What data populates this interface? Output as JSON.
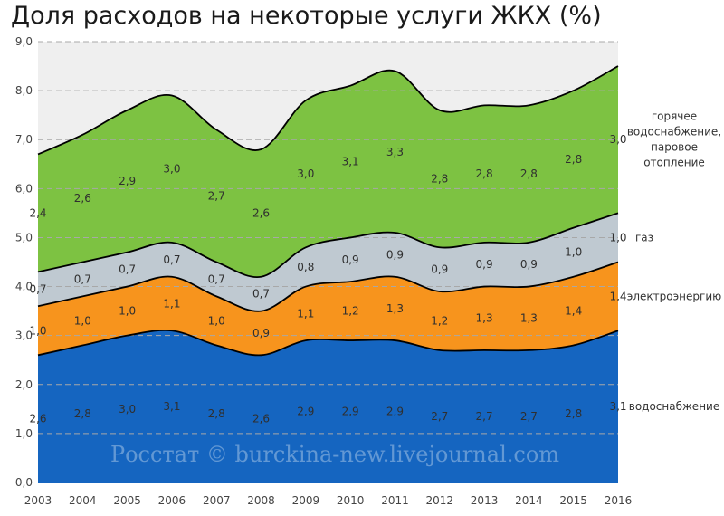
{
  "title": "Доля расходов на некоторые услуги ЖКХ (%)",
  "watermark": "Росстат © burckina-new.livejournal.com",
  "chart_data": {
    "type": "area",
    "stacked": true,
    "title": "Доля расходов на некоторые услуги ЖКХ (%)",
    "x": [
      "2003",
      "2004",
      "2005",
      "2006",
      "2007",
      "2008",
      "2009",
      "2010",
      "2011",
      "2012",
      "2013",
      "2014",
      "2015",
      "2016"
    ],
    "ylim": [
      0,
      9
    ],
    "yticks": [
      "0,0",
      "1,0",
      "2,0",
      "3,0",
      "4,0",
      "5,0",
      "6,0",
      "7,0",
      "8,0",
      "9,0"
    ],
    "grid": true,
    "series": [
      {
        "name": "водоснабжение",
        "color": "#1565c0",
        "values": [
          2.6,
          2.8,
          3.0,
          3.1,
          2.8,
          2.6,
          2.9,
          2.9,
          2.9,
          2.7,
          2.7,
          2.7,
          2.8,
          3.1
        ],
        "labels": [
          "2,6",
          "2,8",
          "3,0",
          "3,1",
          "2,8",
          "2,6",
          "2,9",
          "2,9",
          "2,9",
          "2,7",
          "2,7",
          "2,7",
          "2,8",
          "3,1"
        ]
      },
      {
        "name": "электроэнергию",
        "color": "#f7941d",
        "values": [
          1.0,
          1.0,
          1.0,
          1.1,
          1.0,
          0.9,
          1.1,
          1.2,
          1.3,
          1.2,
          1.3,
          1.3,
          1.4,
          1.4
        ],
        "labels": [
          "1,0",
          "1,0",
          "1,0",
          "1,1",
          "1,0",
          "0,9",
          "1,1",
          "1,2",
          "1,3",
          "1,2",
          "1,3",
          "1,3",
          "1,4",
          "1,4"
        ]
      },
      {
        "name": "газ",
        "color": "#bfc9d1",
        "values": [
          0.7,
          0.7,
          0.7,
          0.7,
          0.7,
          0.7,
          0.8,
          0.9,
          0.9,
          0.9,
          0.9,
          0.9,
          1.0,
          1.0
        ],
        "labels": [
          "0,7",
          "0,7",
          "0,7",
          "0,7",
          "0,7",
          "0,7",
          "0,8",
          "0,9",
          "0,9",
          "0,9",
          "0,9",
          "0,9",
          "1,0",
          "1,0"
        ]
      },
      {
        "name": "горячее водоснабжение, паровое отопление",
        "color": "#7dc242",
        "values": [
          2.4,
          2.6,
          2.9,
          3.0,
          2.7,
          2.6,
          3.0,
          3.1,
          3.3,
          2.8,
          2.8,
          2.8,
          2.8,
          3.0
        ],
        "labels": [
          "2,4",
          "2,6",
          "2,9",
          "3,0",
          "2,7",
          "2,6",
          "3,0",
          "3,1",
          "3,3",
          "2,8",
          "2,8",
          "2,8",
          "2,8",
          "3,0"
        ]
      }
    ],
    "series_labels": [
      {
        "lines": [
          "водоснабжение"
        ]
      },
      {
        "lines": [
          "электроэнергию"
        ]
      },
      {
        "lines": [
          "газ"
        ]
      },
      {
        "lines": [
          "горячее",
          "водоснабжение,",
          "паровое",
          "отопление"
        ]
      }
    ]
  }
}
